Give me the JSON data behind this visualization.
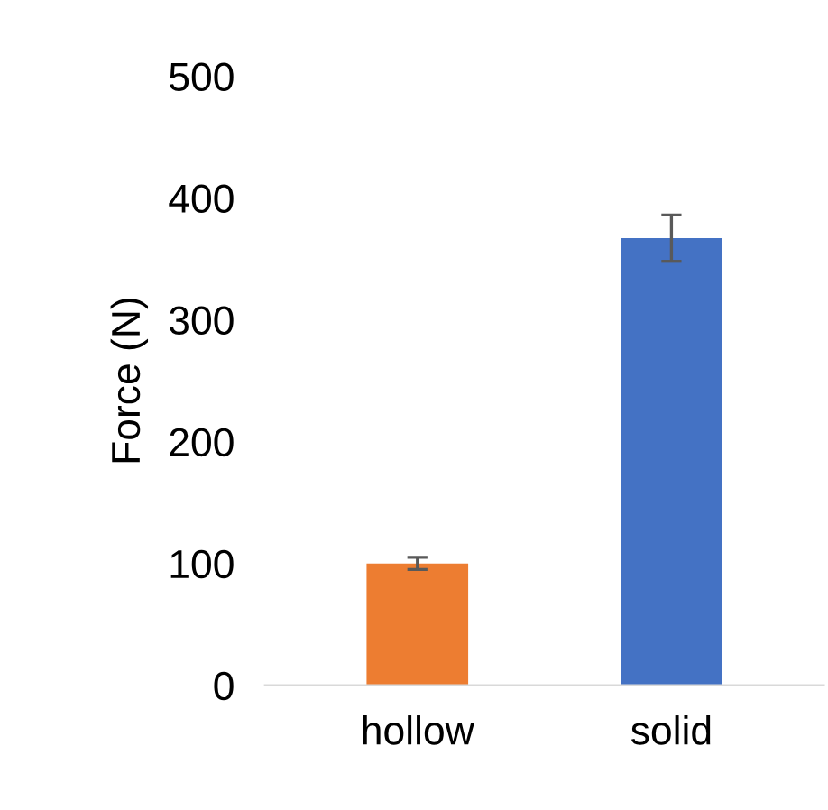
{
  "chart_data": {
    "type": "bar",
    "ylabel": "Force (N)",
    "categories": [
      "hollow",
      "solid"
    ],
    "values": [
      100,
      367
    ],
    "errors": [
      5,
      19
    ],
    "colors": [
      "#ed7d31",
      "#4472c4"
    ],
    "ylim": [
      0,
      500
    ],
    "yticks": [
      0,
      100,
      200,
      300,
      400,
      500
    ],
    "grid": false
  }
}
